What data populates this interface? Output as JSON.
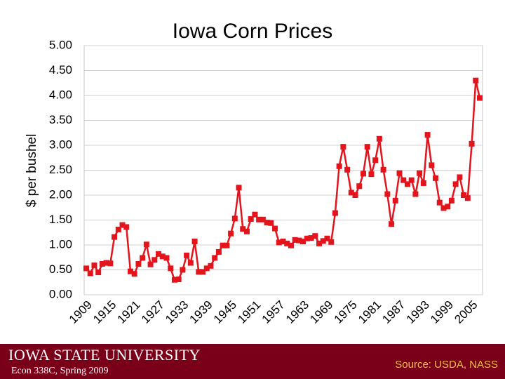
{
  "chart_data": {
    "type": "line",
    "title": "Iowa Corn Prices",
    "ylabel": "$ per bushel",
    "categories": [
      "1909",
      null,
      null,
      null,
      null,
      null,
      "1915",
      null,
      null,
      null,
      null,
      null,
      "1921",
      null,
      null,
      null,
      null,
      null,
      "1927",
      null,
      null,
      null,
      null,
      null,
      "1933",
      null,
      null,
      null,
      null,
      null,
      "1939",
      null,
      null,
      null,
      null,
      null,
      "1945",
      null,
      null,
      null,
      null,
      null,
      "1951",
      null,
      null,
      null,
      null,
      null,
      "1957",
      null,
      null,
      null,
      null,
      null,
      "1963",
      null,
      null,
      null,
      null,
      null,
      "1969",
      null,
      null,
      null,
      null,
      null,
      "1975",
      null,
      null,
      null,
      null,
      null,
      "1981",
      null,
      null,
      null,
      null,
      null,
      "1987",
      null,
      null,
      null,
      null,
      null,
      "1993",
      null,
      null,
      null,
      null,
      null,
      "1999",
      null,
      null,
      null,
      null,
      null,
      "2005",
      null,
      null
    ],
    "series": [
      {
        "name": "Iowa corn price",
        "color": "#e3141b",
        "values": [
          0.53,
          0.43,
          0.59,
          0.45,
          0.62,
          0.64,
          0.63,
          1.16,
          1.31,
          1.4,
          1.36,
          0.47,
          0.42,
          0.62,
          0.74,
          1.01,
          0.61,
          0.7,
          0.82,
          0.77,
          0.74,
          0.53,
          0.3,
          0.31,
          0.5,
          0.79,
          0.64,
          1.07,
          0.46,
          0.46,
          0.53,
          0.58,
          0.74,
          0.86,
          0.99,
          0.99,
          1.23,
          1.53,
          2.15,
          1.32,
          1.27,
          1.52,
          1.61,
          1.51,
          1.51,
          1.45,
          1.44,
          1.33,
          1.05,
          1.07,
          1.03,
          0.99,
          1.1,
          1.09,
          1.07,
          1.13,
          1.14,
          1.18,
          1.03,
          1.08,
          1.13,
          1.06,
          1.64,
          2.58,
          2.97,
          2.51,
          2.05,
          2.0,
          2.18,
          2.43,
          2.97,
          2.42,
          2.7,
          3.13,
          2.51,
          2.02,
          1.42,
          1.89,
          2.44,
          2.3,
          2.22,
          2.3,
          2.02,
          2.44,
          2.24,
          3.21,
          2.6,
          2.34,
          1.85,
          1.74,
          1.77,
          1.89,
          2.22,
          2.36,
          2.0,
          1.94,
          3.03,
          4.3,
          3.95
        ]
      }
    ],
    "ylim": [
      0,
      5
    ],
    "yticks": [
      {
        "value": 0,
        "label": "0.00"
      },
      {
        "value": 0.5,
        "label": "0.50"
      },
      {
        "value": 1,
        "label": "1.00"
      },
      {
        "value": 1.5,
        "label": "1.50"
      },
      {
        "value": 2,
        "label": "2.00"
      },
      {
        "value": 2.5,
        "label": "2.50"
      },
      {
        "value": 3,
        "label": "3.00"
      },
      {
        "value": 3.5,
        "label": "3.50"
      },
      {
        "value": 4,
        "label": "4.00"
      },
      {
        "value": 4.5,
        "label": "4.50"
      },
      {
        "value": 5,
        "label": "5.00"
      }
    ],
    "grid": true,
    "footer": {
      "logo": "IOWA STATE UNIVERSITY",
      "course": "Econ 338C, Spring 2009",
      "source": "Source: USDA, NASS"
    }
  }
}
